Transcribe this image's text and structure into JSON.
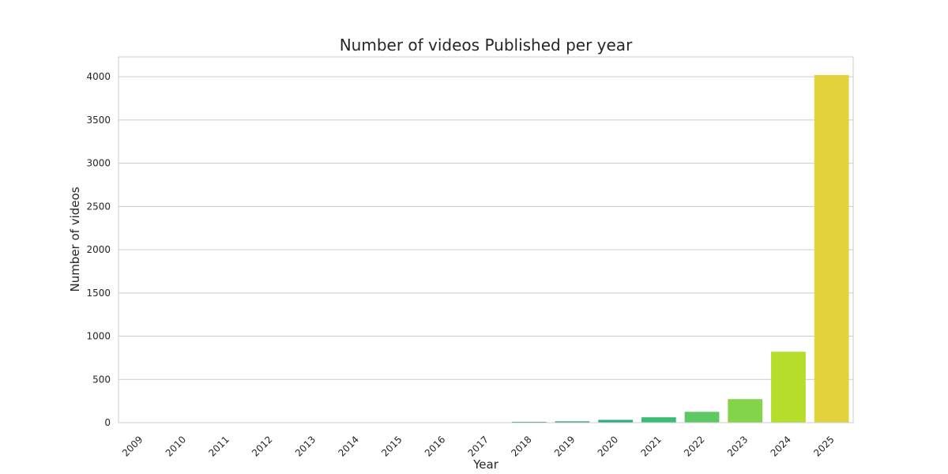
{
  "chart_data": {
    "type": "bar",
    "title": "Number of videos Published per year",
    "xlabel": "Year",
    "ylabel": "Number of videos",
    "categories": [
      "2009",
      "2010",
      "2011",
      "2012",
      "2013",
      "2014",
      "2015",
      "2016",
      "2017",
      "2018",
      "2019",
      "2020",
      "2021",
      "2022",
      "2023",
      "2024",
      "2025"
    ],
    "values": [
      1,
      1,
      1,
      1,
      1,
      1,
      1,
      1,
      2,
      10,
      15,
      32,
      62,
      125,
      272,
      820,
      4020
    ],
    "ylim": [
      0,
      4230
    ],
    "yticks": [
      0,
      500,
      1000,
      1500,
      2000,
      2500,
      3000,
      3500,
      4000
    ],
    "grid": true,
    "legend": "none",
    "colors": [
      "#46317e",
      "#482979",
      "#472e7c",
      "#433e85",
      "#3d4e8a",
      "#375b8d",
      "#31688e",
      "#2c728e",
      "#26828e",
      "#21918c",
      "#1fa088",
      "#29af7f",
      "#3bbb75",
      "#5ec962",
      "#84d44b",
      "#b5de2b",
      "#e3d33a"
    ]
  }
}
